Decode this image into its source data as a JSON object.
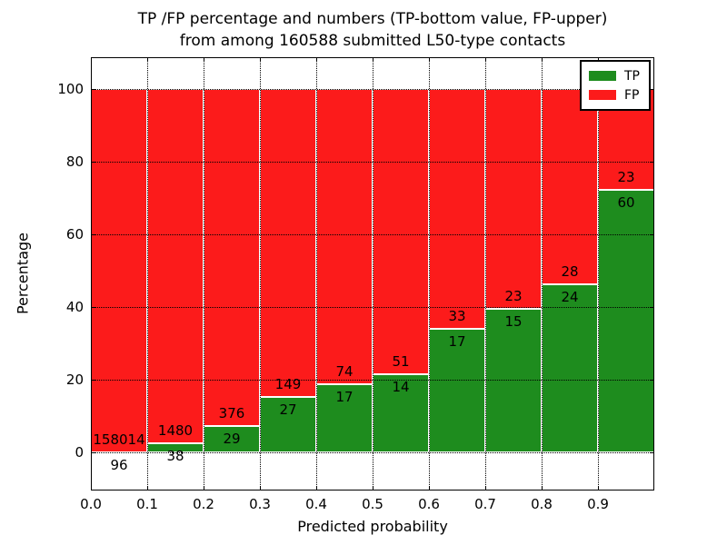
{
  "figure": {
    "title_line1": "TP /FP percentage and numbers (TP-bottom value, FP-upper)",
    "title_line2": "from among 160588 submitted L50-type contacts"
  },
  "axes": {
    "xlabel": "Predicted probability",
    "ylabel": "Percentage",
    "x_tick_labels": [
      "0.0",
      "0.1",
      "0.2",
      "0.3",
      "0.4",
      "0.5",
      "0.6",
      "0.7",
      "0.8",
      "0.9"
    ],
    "y_tick_labels": [
      "0",
      "20",
      "40",
      "60",
      "80",
      "100"
    ],
    "y_tick_values": [
      0,
      20,
      40,
      60,
      80,
      100
    ]
  },
  "legend": {
    "items": [
      {
        "label": "TP",
        "color": "#1e8c1e"
      },
      {
        "label": "FP",
        "color": "#fc1b1b"
      }
    ]
  },
  "colors": {
    "tp_green": "#1e8c1e",
    "fp_red": "#fc1b1b",
    "bar_edge": "#ffffff",
    "grid": "#000000"
  },
  "chart_data": {
    "type": "bar",
    "stacked": true,
    "title": "TP /FP percentage and numbers (TP-bottom value, FP-upper) from among 160588 submitted L50-type contacts",
    "xlabel": "Predicted probability",
    "ylabel": "Percentage",
    "categories": [
      "0.0-0.1",
      "0.1-0.2",
      "0.2-0.3",
      "0.3-0.4",
      "0.4-0.5",
      "0.5-0.6",
      "0.6-0.7",
      "0.7-0.8",
      "0.8-0.9",
      "0.9-1.0"
    ],
    "bin_start": [
      0.0,
      0.1,
      0.2,
      0.3,
      0.4,
      0.5,
      0.6,
      0.7,
      0.8,
      0.9
    ],
    "bin_width": 0.1,
    "series": [
      {
        "name": "TP",
        "color": "#1e8c1e",
        "counts": [
          96,
          38,
          29,
          27,
          17,
          14,
          17,
          15,
          24,
          60
        ],
        "percent": [
          0.06,
          2.5,
          7.16,
          15.34,
          18.68,
          21.54,
          34.0,
          39.47,
          46.15,
          72.29
        ]
      },
      {
        "name": "FP",
        "color": "#fc1b1b",
        "counts": [
          158014,
          1480,
          376,
          149,
          74,
          51,
          33,
          23,
          28,
          23
        ],
        "percent": [
          99.94,
          97.5,
          92.84,
          84.66,
          81.32,
          78.46,
          66.0,
          60.53,
          53.85,
          27.71
        ]
      }
    ],
    "total_submitted": 160588,
    "xlim": [
      0.0,
      1.0
    ],
    "ylim": [
      -10.5,
      108.75
    ],
    "grid": true,
    "grid_style": "dotted",
    "legend_position": "upper right"
  }
}
